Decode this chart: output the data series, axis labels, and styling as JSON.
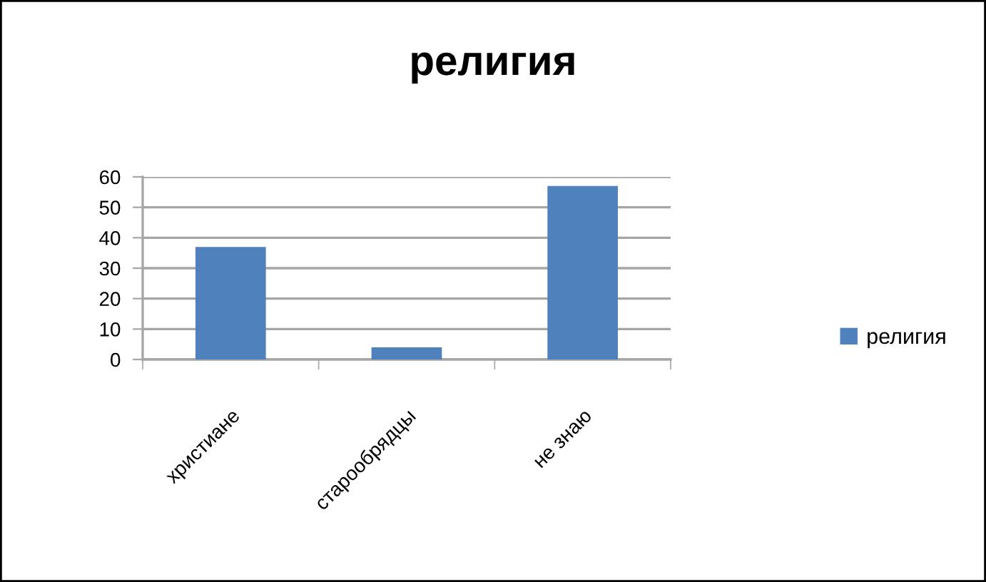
{
  "chart_data": {
    "type": "bar",
    "title": "религия",
    "categories": [
      "христиане",
      "старообрядцы",
      "не знаю"
    ],
    "series": [
      {
        "name": "религия",
        "color": "#4f81bd",
        "values": [
          37,
          4,
          57
        ]
      }
    ],
    "ylim": [
      0,
      60
    ],
    "yticks": [
      0,
      10,
      20,
      30,
      40,
      50,
      60
    ],
    "grid": "y",
    "legend": "right"
  }
}
